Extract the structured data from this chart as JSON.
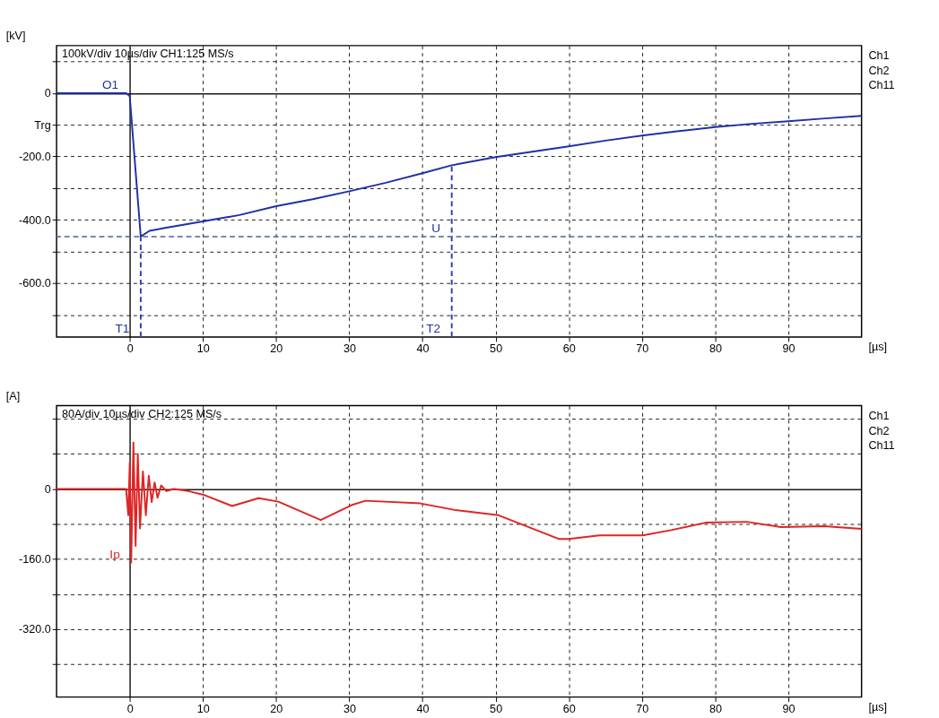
{
  "chart_data": [
    {
      "type": "line",
      "ylabel": "[kV]",
      "xlabel": "[µs]",
      "xlim": [
        -10,
        100
      ],
      "ylim": [
        -770,
        150
      ],
      "xticks": [
        0,
        10,
        20,
        30,
        40,
        50,
        60,
        70,
        80,
        90
      ],
      "yticks": [
        {
          "value": 100,
          "label": null
        },
        0,
        {
          "value": -100,
          "label": "Trg"
        },
        {
          "value": -200,
          "label": "-200.0"
        },
        {
          "value": -300,
          "label": null
        },
        {
          "value": -400,
          "label": "-400.0"
        },
        {
          "value": -500,
          "label": null
        },
        {
          "value": -600,
          "label": "-600.0"
        },
        {
          "value": -700,
          "label": null
        }
      ],
      "grid": true,
      "series": [
        {
          "color": "#1f30a8",
          "x": [
            -10,
            -0.5,
            0,
            1.5,
            2.7,
            5,
            10,
            15,
            20,
            25,
            30,
            35,
            40,
            44,
            50,
            55,
            60,
            65,
            70,
            75,
            80,
            85,
            90,
            95,
            100
          ],
          "values": [
            0,
            0,
            -10,
            -453,
            -435,
            -425,
            -405,
            -385,
            -357,
            -335,
            -310,
            -283,
            -253,
            -228,
            -202,
            -185,
            -168,
            -150,
            -134,
            -120,
            -107,
            -97,
            -89,
            -80,
            -72
          ]
        },
        {
          "type": "line",
          "color": "#3040b0",
          "line_style": "dashed",
          "x": [
            1.5,
            1.5
          ],
          "values": [
            -770,
            -453
          ]
        },
        {
          "type": "line",
          "color": "#3040b0",
          "line_style": "dashed",
          "x": [
            44,
            44
          ],
          "values": [
            -770,
            -228
          ]
        }
      ],
      "ref_lines": [
        {
          "axis": "y",
          "value": -453,
          "color": "#5060a0",
          "line_style": "dashed"
        }
      ],
      "annotations": [
        "100kV/div  10µs/div  CH1:125 MS/s",
        "Ch1",
        "Ch2",
        "Ch11",
        {
          "text": "O1",
          "x": 0,
          "y": 0
        },
        {
          "text": "T1",
          "x": 1.5,
          "y": -770
        },
        {
          "text": "T2",
          "x": 44,
          "y": -770
        },
        {
          "text": "U",
          "x": 44,
          "y": -453
        }
      ]
    },
    {
      "type": "line",
      "ylabel": "[A]",
      "xlabel": "[µs]",
      "xlim": [
        -10,
        100
      ],
      "ylim": [
        -475,
        190
      ],
      "xticks": [
        0,
        10,
        20,
        30,
        40,
        50,
        60,
        70,
        80,
        90
      ],
      "yticks": [
        {
          "value": 160,
          "label": null
        },
        {
          "value": 80,
          "label": null
        },
        0,
        {
          "value": -80,
          "label": null
        },
        {
          "value": -160,
          "label": "-160.0"
        },
        {
          "value": -240,
          "label": null
        },
        {
          "value": -320,
          "label": "-320.0"
        },
        {
          "value": -400,
          "label": null
        }
      ],
      "grid": true,
      "series": [
        {
          "color": "#e02424",
          "x": [
            -10,
            -0.5,
            -0.2,
            0,
            0.2,
            0.5,
            0.8,
            1.1,
            1.4,
            1.8,
            2.2,
            2.6,
            3,
            3.4,
            3.8,
            4.3,
            5,
            6,
            8,
            10.2,
            14,
            17.6,
            20.3,
            26.1,
            30.3,
            32.2,
            39.7,
            44.4,
            50.4,
            58.6,
            60,
            64.2,
            70.1,
            74,
            78.7,
            84.3,
            89,
            94.9,
            100
          ],
          "values": [
            0,
            0,
            -60,
            60,
            -168,
            106,
            -130,
            80,
            -90,
            40,
            -60,
            30,
            -30,
            15,
            -20,
            8,
            -5,
            0,
            -5,
            -14,
            -39,
            -21,
            -29,
            -71,
            -37,
            -27,
            -33,
            -48,
            -60,
            -114,
            -114,
            -106,
            -106,
            -94,
            -77,
            -75,
            -87,
            -85,
            -91
          ]
        }
      ],
      "annotations": [
        "80A/div  10µs/div  CH2:125 MS/s",
        "Ch1",
        "Ch2",
        "Ch11",
        {
          "text": "Ip",
          "x": 0.2,
          "y": -168
        }
      ]
    }
  ]
}
